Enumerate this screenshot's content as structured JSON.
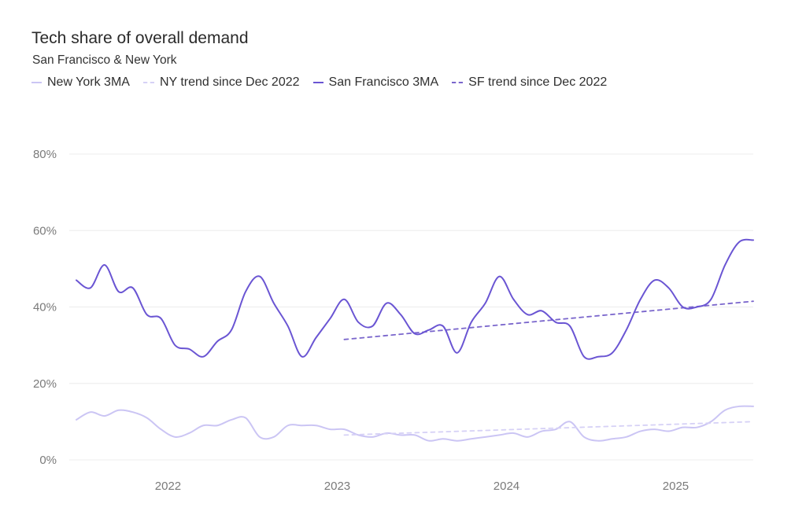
{
  "title": "Tech share of overall demand",
  "subtitle": "San Francisco & New York",
  "legend": [
    {
      "label": "New York 3MA",
      "color": "#cbc5f4",
      "style": "solid"
    },
    {
      "label": "NY trend since Dec 2022",
      "color": "#d6d1f6",
      "style": "dashed"
    },
    {
      "label": "San Francisco 3MA",
      "color": "#6a55d3",
      "style": "solid"
    },
    {
      "label": "SF trend since Dec 2022",
      "color": "#7a66cc",
      "style": "dashed"
    }
  ],
  "chart_data": {
    "type": "line",
    "title": "Tech share of overall demand",
    "subtitle": "San Francisco & New York",
    "xlim": [
      "2021-06",
      "2025-06"
    ],
    "ylim": [
      0,
      80
    ],
    "y_ticks": [
      "0%",
      "20%",
      "40%",
      "60%",
      "80%"
    ],
    "y_tick_values": [
      0,
      20,
      40,
      60,
      80
    ],
    "x_ticks": [
      "2022",
      "2023",
      "2024",
      "2025"
    ],
    "x_tick_values": [
      "2022-01",
      "2023-01",
      "2024-01",
      "2025-01"
    ],
    "grid": true,
    "legend_position": "top-left",
    "series": [
      {
        "name": "San Francisco 3MA",
        "color": "#6a55d3",
        "style": "solid",
        "x": [
          "2021-06",
          "2021-07",
          "2021-08",
          "2021-09",
          "2021-10",
          "2021-11",
          "2021-12",
          "2022-01",
          "2022-02",
          "2022-03",
          "2022-04",
          "2022-05",
          "2022-06",
          "2022-07",
          "2022-08",
          "2022-09",
          "2022-10",
          "2022-11",
          "2022-12",
          "2023-01",
          "2023-02",
          "2023-03",
          "2023-04",
          "2023-05",
          "2023-06",
          "2023-07",
          "2023-08",
          "2023-09",
          "2023-10",
          "2023-11",
          "2023-12",
          "2024-01",
          "2024-02",
          "2024-03",
          "2024-04",
          "2024-05",
          "2024-06",
          "2024-07",
          "2024-08",
          "2024-09",
          "2024-10",
          "2024-11",
          "2024-12",
          "2025-01",
          "2025-02",
          "2025-03",
          "2025-04",
          "2025-05",
          "2025-06"
        ],
        "values": [
          47,
          45,
          51,
          44,
          45,
          38,
          37,
          30,
          29,
          27,
          31,
          34,
          44,
          48,
          41,
          35,
          27,
          32,
          37,
          42,
          36,
          35,
          41,
          38,
          33,
          34,
          35,
          28,
          36,
          41,
          48,
          42,
          38,
          39,
          36,
          35,
          27,
          27,
          28,
          34,
          42,
          47,
          45,
          40,
          40,
          42,
          51,
          57,
          57.5
        ]
      },
      {
        "name": "New York 3MA",
        "color": "#cbc5f4",
        "style": "solid",
        "x": [
          "2021-06",
          "2021-07",
          "2021-08",
          "2021-09",
          "2021-10",
          "2021-11",
          "2021-12",
          "2022-01",
          "2022-02",
          "2022-03",
          "2022-04",
          "2022-05",
          "2022-06",
          "2022-07",
          "2022-08",
          "2022-09",
          "2022-10",
          "2022-11",
          "2022-12",
          "2023-01",
          "2023-02",
          "2023-03",
          "2023-04",
          "2023-05",
          "2023-06",
          "2023-07",
          "2023-08",
          "2023-09",
          "2023-10",
          "2023-11",
          "2023-12",
          "2024-01",
          "2024-02",
          "2024-03",
          "2024-04",
          "2024-05",
          "2024-06",
          "2024-07",
          "2024-08",
          "2024-09",
          "2024-10",
          "2024-11",
          "2024-12",
          "2025-01",
          "2025-02",
          "2025-03",
          "2025-04",
          "2025-05",
          "2025-06"
        ],
        "values": [
          10.5,
          12.5,
          11.5,
          13,
          12.5,
          11,
          8,
          6,
          7,
          9,
          9,
          10.5,
          11,
          6,
          6,
          9,
          9,
          9,
          8,
          8,
          6.5,
          6,
          7,
          6.5,
          6.5,
          5,
          5.5,
          5,
          5.5,
          6,
          6.5,
          7,
          6,
          7.5,
          8,
          10,
          6,
          5,
          5.5,
          6,
          7.5,
          8,
          7.5,
          8.5,
          8.5,
          10,
          13,
          14,
          14
        ]
      },
      {
        "name": "SF trend since Dec 2022",
        "color": "#7a66cc",
        "style": "dashed",
        "x": [
          "2023-01",
          "2025-06"
        ],
        "values": [
          31.5,
          41.5
        ]
      },
      {
        "name": "NY trend since Dec 2022",
        "color": "#d6d1f6",
        "style": "dashed",
        "x": [
          "2023-01",
          "2025-06"
        ],
        "values": [
          6.5,
          10
        ]
      }
    ]
  }
}
